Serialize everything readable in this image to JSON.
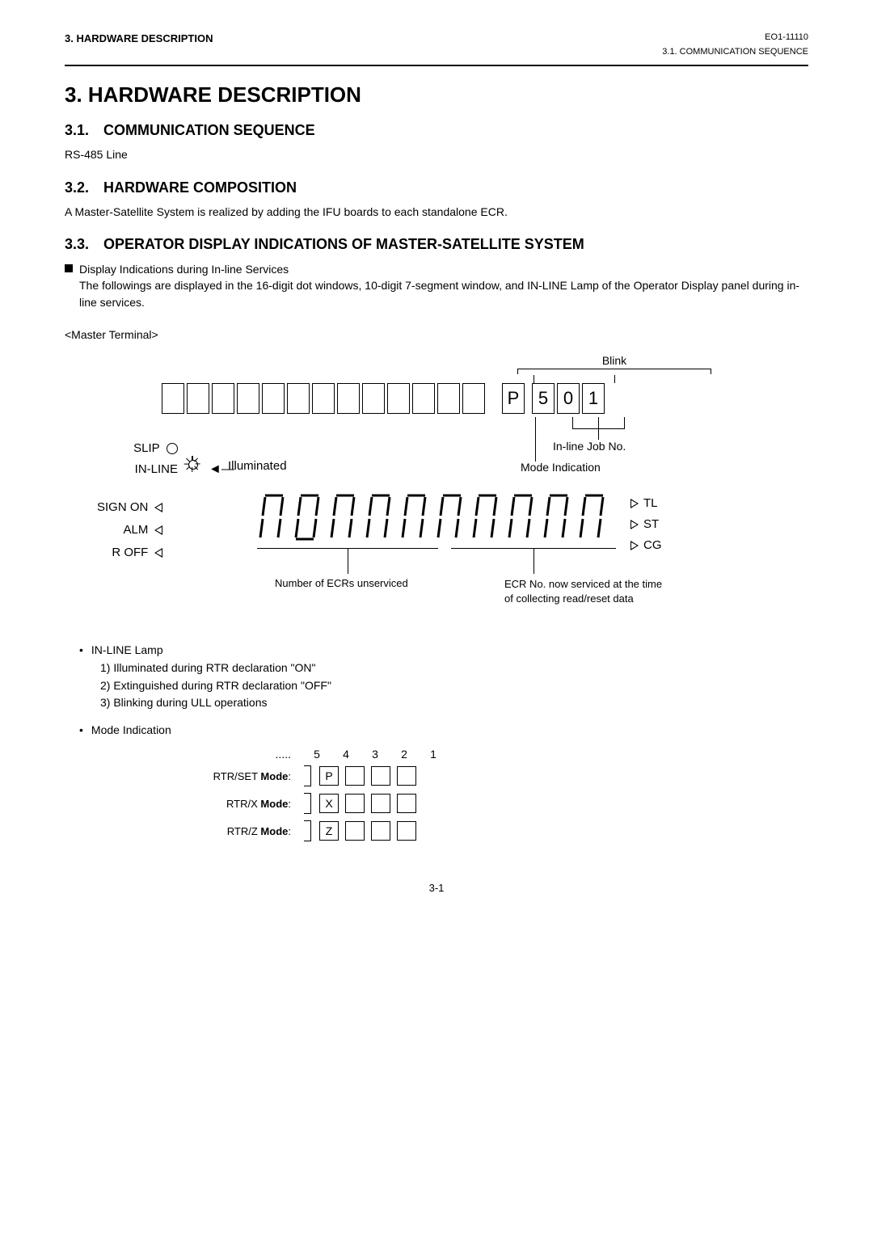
{
  "header": {
    "left": "3.   HARDWARE DESCRIPTION",
    "right_top": "EO1-11110",
    "right_sub": "3.1.  COMMUNICATION SEQUENCE"
  },
  "h1": "3.    HARDWARE DESCRIPTION",
  "s31": {
    "title_num": "3.1.",
    "title": "COMMUNICATION SEQUENCE",
    "body": "RS-485 Line"
  },
  "s32": {
    "title_num": "3.2.",
    "title": "HARDWARE COMPOSITION",
    "body": "A Master-Satellite System is realized by adding the IFU boards to each standalone ECR."
  },
  "s33": {
    "title_num": "3.3.",
    "title": "OPERATOR DISPLAY INDICATIONS OF MASTER-SATELLITE SYSTEM",
    "bullet_title": "Display Indications during In-line Services",
    "bullet_body": "The followings are displayed in the 16-digit dot windows, 10-digit 7-segment window, and IN-LINE Lamp of the Operator Display panel during in-line services.",
    "master_label": "<Master Terminal>"
  },
  "diagram": {
    "blink_label": "Blink",
    "dot_row": {
      "blanks": 13,
      "right_cells": [
        "P",
        "",
        "5",
        "0",
        "1"
      ]
    },
    "lamps": {
      "slip": "SLIP",
      "inline": "IN-LINE",
      "illuminated": "Illuminated"
    },
    "inline_job": "In-line Job No.",
    "mode_ind": "Mode Indication",
    "left_tri_labels": [
      "SIGN ON",
      "ALM",
      "R OFF"
    ],
    "right_tri_labels": [
      "TL",
      "ST",
      "CG"
    ],
    "seven_seg": {
      "count_blank": 10,
      "highlight_index": 1
    },
    "caption_left": "Number of ECRs unserviced",
    "caption_right_l1": "ECR No. now serviced at the time",
    "caption_right_l2": "of collecting read/reset data"
  },
  "inline_lamp": {
    "title": "IN-LINE Lamp",
    "items": [
      "1)  Illuminated during RTR declaration \"ON\"",
      "2)  Extinguished during RTR declaration \"OFF\"",
      "3)  Blinking during ULL operations"
    ]
  },
  "mode_indication": {
    "title": "Mode Indication",
    "col_dots": ".....",
    "cols": [
      "5",
      "4",
      "3",
      "2",
      "1"
    ],
    "rows": [
      {
        "label_pre": "RTR/SET ",
        "label_bold": "Mode",
        "label_post": ":",
        "cells": [
          "",
          "P",
          "",
          "",
          ""
        ]
      },
      {
        "label_pre": "RTR/X ",
        "label_bold": "Mode",
        "label_post": ":",
        "cells": [
          "",
          "X",
          "",
          "",
          ""
        ]
      },
      {
        "label_pre": "RTR/Z ",
        "label_bold": "Mode",
        "label_post": ":",
        "cells": [
          "",
          "Z",
          "",
          "",
          ""
        ]
      }
    ]
  },
  "page_num": "3-1"
}
